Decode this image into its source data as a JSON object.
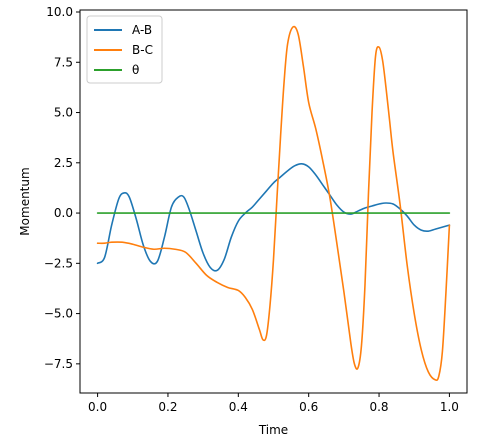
{
  "chart_data": {
    "type": "line",
    "title": "",
    "xlabel": "Time",
    "ylabel": "Momentum",
    "xlim": [
      -0.05,
      1.05
    ],
    "ylim": [
      -8.95,
      10.1
    ],
    "xticks": [
      0.0,
      0.2,
      0.4,
      0.6,
      0.8,
      1.0
    ],
    "xtick_labels": [
      "0.0",
      "0.2",
      "0.4",
      "0.6",
      "0.8",
      "1.0"
    ],
    "yticks": [
      -7.5,
      -5.0,
      -2.5,
      0.0,
      2.5,
      5.0,
      7.5,
      10.0
    ],
    "ytick_labels": [
      "−7.5",
      "−5.0",
      "−2.5",
      "0.0",
      "2.5",
      "5.0",
      "7.5",
      "10.0"
    ],
    "grid": false,
    "legend_position": "top-left",
    "series": [
      {
        "name": "A-B",
        "color": "#1f77b4",
        "x": [
          0.0,
          0.02,
          0.04,
          0.06,
          0.075,
          0.09,
          0.11,
          0.13,
          0.15,
          0.17,
          0.19,
          0.21,
          0.23,
          0.245,
          0.26,
          0.28,
          0.3,
          0.32,
          0.34,
          0.36,
          0.38,
          0.4,
          0.42,
          0.44,
          0.46,
          0.48,
          0.5,
          0.52,
          0.54,
          0.56,
          0.58,
          0.6,
          0.62,
          0.64,
          0.66,
          0.68,
          0.7,
          0.72,
          0.74,
          0.76,
          0.78,
          0.8,
          0.82,
          0.84,
          0.86,
          0.88,
          0.9,
          0.92,
          0.94,
          0.96,
          0.98,
          1.0
        ],
        "y": [
          -2.5,
          -2.2,
          -0.6,
          0.7,
          1.0,
          0.8,
          -0.3,
          -1.6,
          -2.4,
          -2.4,
          -1.2,
          0.3,
          0.8,
          0.8,
          0.2,
          -0.9,
          -2.0,
          -2.7,
          -2.85,
          -2.3,
          -1.2,
          -0.4,
          0.0,
          0.3,
          0.7,
          1.1,
          1.5,
          1.8,
          2.1,
          2.35,
          2.45,
          2.3,
          1.9,
          1.4,
          0.9,
          0.4,
          0.05,
          -0.05,
          0.1,
          0.25,
          0.35,
          0.45,
          0.5,
          0.45,
          0.2,
          -0.15,
          -0.6,
          -0.85,
          -0.9,
          -0.8,
          -0.7,
          -0.6
        ]
      },
      {
        "name": "B-C",
        "color": "#ff7f0e",
        "x": [
          0.0,
          0.02,
          0.04,
          0.07,
          0.1,
          0.13,
          0.16,
          0.19,
          0.22,
          0.25,
          0.28,
          0.31,
          0.34,
          0.37,
          0.4,
          0.42,
          0.44,
          0.46,
          0.47,
          0.48,
          0.49,
          0.5,
          0.51,
          0.52,
          0.53,
          0.54,
          0.555,
          0.57,
          0.585,
          0.6,
          0.62,
          0.64,
          0.66,
          0.68,
          0.7,
          0.72,
          0.73,
          0.74,
          0.75,
          0.76,
          0.77,
          0.78,
          0.79,
          0.8,
          0.81,
          0.82,
          0.83,
          0.84,
          0.86,
          0.88,
          0.9,
          0.92,
          0.94,
          0.96,
          0.97,
          0.98,
          0.99,
          1.0
        ],
        "y": [
          -1.5,
          -1.5,
          -1.45,
          -1.45,
          -1.55,
          -1.7,
          -1.8,
          -1.75,
          -1.8,
          -1.95,
          -2.5,
          -3.1,
          -3.45,
          -3.7,
          -3.85,
          -4.2,
          -4.8,
          -5.8,
          -6.3,
          -6.1,
          -4.6,
          -2.3,
          0.8,
          3.8,
          6.5,
          8.4,
          9.25,
          8.9,
          7.3,
          5.5,
          4.2,
          2.6,
          0.8,
          -1.5,
          -3.9,
          -6.5,
          -7.5,
          -7.7,
          -6.6,
          -3.6,
          1.0,
          5.0,
          7.8,
          8.25,
          7.6,
          6.2,
          4.6,
          3.0,
          0.4,
          -2.6,
          -5.0,
          -6.8,
          -7.9,
          -8.3,
          -8.1,
          -6.9,
          -4.0,
          -0.6
        ]
      },
      {
        "name": "θ",
        "color": "#2ca02c",
        "x": [
          0.0,
          1.0
        ],
        "y": [
          0.0,
          0.0
        ]
      }
    ]
  }
}
